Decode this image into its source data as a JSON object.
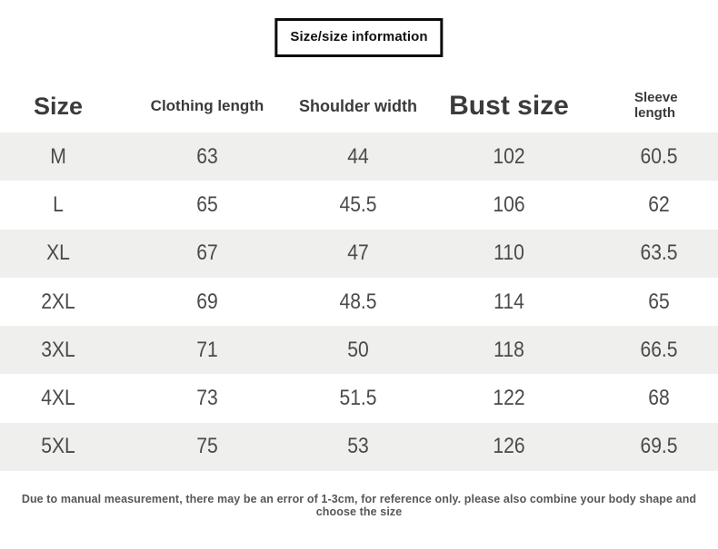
{
  "title_box": {
    "label": "Size/size information",
    "border_color": "#0b0b0b"
  },
  "table": {
    "headers": [
      "Size",
      "Clothing length",
      "Shoulder width",
      "Bust size",
      "Sleeve length"
    ],
    "stripe_color": "#efefee",
    "text_color": "#4a4a4a",
    "rows": [
      {
        "size": "M",
        "clothing_length": "63",
        "shoulder_width": "44",
        "bust_size": "102",
        "sleeve_length": "60.5"
      },
      {
        "size": "L",
        "clothing_length": "65",
        "shoulder_width": "45.5",
        "bust_size": "106",
        "sleeve_length": "62"
      },
      {
        "size": "XL",
        "clothing_length": "67",
        "shoulder_width": "47",
        "bust_size": "110",
        "sleeve_length": "63.5"
      },
      {
        "size": "2XL",
        "clothing_length": "69",
        "shoulder_width": "48.5",
        "bust_size": "114",
        "sleeve_length": "65"
      },
      {
        "size": "3XL",
        "clothing_length": "71",
        "shoulder_width": "50",
        "bust_size": "118",
        "sleeve_length": "66.5"
      },
      {
        "size": "4XL",
        "clothing_length": "73",
        "shoulder_width": "51.5",
        "bust_size": "122",
        "sleeve_length": "68"
      },
      {
        "size": "5XL",
        "clothing_length": "75",
        "shoulder_width": "53",
        "bust_size": "126",
        "sleeve_length": "69.5"
      }
    ]
  },
  "footer": {
    "note": "Due to manual measurement, there may be an error of 1-3cm, for reference only. please also combine your body shape and choose the size"
  }
}
